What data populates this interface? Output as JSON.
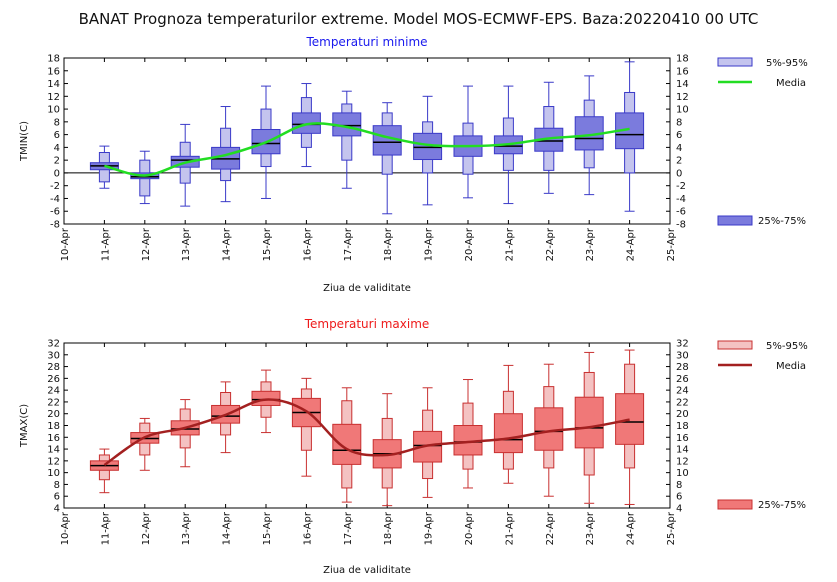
{
  "title": "BANAT  Prognoza temperaturilor extreme.  Model MOS-ECMWF-EPS. Baza:20220410 00 UTC",
  "chart_data": [
    {
      "type": "box",
      "title": "Temperaturi minime",
      "xlabel": "Ziua de validitate",
      "ylabel": "TMIN(C)",
      "ylim": [
        -8,
        18
      ],
      "ytick_step": 2,
      "x_ticks": [
        "10-Apr",
        "11-Apr",
        "12-Apr",
        "13-Apr",
        "14-Apr",
        "15-Apr",
        "16-Apr",
        "17-Apr",
        "18-Apr",
        "19-Apr",
        "20-Apr",
        "21-Apr",
        "22-Apr",
        "23-Apr",
        "24-Apr",
        "25-Apr"
      ],
      "categories": [
        "11-Apr",
        "12-Apr",
        "13-Apr",
        "14-Apr",
        "15-Apr",
        "16-Apr",
        "17-Apr",
        "18-Apr",
        "19-Apr",
        "20-Apr",
        "21-Apr",
        "22-Apr",
        "23-Apr",
        "24-Apr"
      ],
      "whisker_min": [
        -2.4,
        -4.8,
        -5.2,
        -4.5,
        -4.0,
        1.0,
        -2.4,
        -6.4,
        -5.0,
        -3.9,
        -4.8,
        -3.2,
        -3.4,
        -6.0
      ],
      "p5": [
        -1.4,
        -3.6,
        -1.6,
        -1.2,
        1.0,
        4.0,
        2.0,
        -0.2,
        0.0,
        -0.2,
        0.4,
        0.4,
        0.8,
        0.0
      ],
      "p25": [
        0.5,
        -0.9,
        0.9,
        0.6,
        3.0,
        6.2,
        5.8,
        2.8,
        2.1,
        2.6,
        3.0,
        3.4,
        3.6,
        3.8
      ],
      "median": [
        1.1,
        -0.6,
        2.0,
        2.2,
        4.6,
        7.6,
        7.4,
        4.8,
        4.0,
        4.2,
        4.2,
        5.0,
        5.4,
        6.0
      ],
      "p75": [
        1.6,
        0.0,
        2.6,
        4.0,
        6.8,
        9.4,
        9.4,
        7.4,
        6.2,
        5.8,
        5.8,
        7.0,
        8.8,
        9.4
      ],
      "p95": [
        3.2,
        2.0,
        4.8,
        7.0,
        10.0,
        11.8,
        10.8,
        9.4,
        8.0,
        7.8,
        8.6,
        10.4,
        11.4,
        12.6
      ],
      "whisker_max": [
        4.2,
        3.4,
        7.6,
        10.4,
        13.6,
        14.0,
        12.8,
        11.0,
        12.0,
        13.6,
        13.6,
        14.2,
        15.2,
        17.4
      ],
      "mean": [
        1.1,
        -0.4,
        1.6,
        2.8,
        4.8,
        7.6,
        7.2,
        5.6,
        4.4,
        4.2,
        4.5,
        5.4,
        5.9,
        6.9
      ],
      "legend": {
        "p5_95": "5%-95%",
        "mean": "Media",
        "p25_75": "25%-75%"
      },
      "colors": {
        "box_outer": "#c4c4ee",
        "box_inner": "#7b7bdd",
        "stroke": "#3a3ac8",
        "mean_line": "#22dd22",
        "title": "#1a1aee"
      }
    },
    {
      "type": "box",
      "title": "Temperaturi maxime",
      "xlabel": "Ziua de validitate",
      "ylabel": "TMAX(C)",
      "ylim": [
        4,
        32
      ],
      "ytick_step": 2,
      "x_ticks": [
        "10-Apr",
        "11-Apr",
        "12-Apr",
        "13-Apr",
        "14-Apr",
        "15-Apr",
        "16-Apr",
        "17-Apr",
        "18-Apr",
        "19-Apr",
        "20-Apr",
        "21-Apr",
        "22-Apr",
        "23-Apr",
        "24-Apr",
        "25-Apr"
      ],
      "categories": [
        "11-Apr",
        "12-Apr",
        "13-Apr",
        "14-Apr",
        "15-Apr",
        "16-Apr",
        "17-Apr",
        "18-Apr",
        "19-Apr",
        "20-Apr",
        "21-Apr",
        "22-Apr",
        "23-Apr",
        "24-Apr"
      ],
      "whisker_min": [
        6.6,
        10.4,
        11.0,
        13.4,
        16.8,
        9.4,
        5.0,
        4.4,
        5.8,
        7.4,
        8.2,
        6.0,
        4.8,
        4.6
      ],
      "p5": [
        8.8,
        13.0,
        14.2,
        16.4,
        19.4,
        13.8,
        7.4,
        7.4,
        9.0,
        10.6,
        10.6,
        10.8,
        9.6,
        10.8
      ],
      "p25": [
        10.4,
        15.0,
        16.4,
        18.4,
        21.4,
        17.8,
        11.4,
        10.8,
        11.8,
        13.0,
        13.4,
        13.8,
        14.2,
        14.8
      ],
      "median": [
        11.2,
        15.8,
        17.4,
        19.6,
        22.4,
        20.2,
        13.8,
        13.2,
        14.6,
        15.2,
        15.6,
        17.0,
        17.6,
        18.6
      ],
      "p75": [
        12.0,
        16.8,
        18.8,
        21.4,
        23.8,
        22.6,
        18.2,
        15.6,
        17.0,
        18.0,
        20.0,
        21.0,
        22.8,
        23.4
      ],
      "p95": [
        13.0,
        18.4,
        20.8,
        23.6,
        25.4,
        24.2,
        22.2,
        19.2,
        20.6,
        21.8,
        23.8,
        24.6,
        27.0,
        28.4
      ],
      "whisker_max": [
        14.0,
        19.2,
        22.4,
        25.4,
        27.4,
        26.0,
        24.4,
        23.4,
        24.4,
        25.8,
        28.2,
        28.4,
        30.4,
        30.8
      ],
      "mean": [
        11.3,
        16.0,
        17.6,
        19.8,
        22.4,
        20.4,
        14.0,
        13.0,
        14.6,
        15.2,
        15.8,
        17.0,
        17.7,
        19.0
      ],
      "legend": {
        "p5_95": "5%-95%",
        "mean": "Media",
        "p25_75": "25%-75%"
      },
      "colors": {
        "box_outer": "#f4c2c2",
        "box_inner": "#f07878",
        "stroke": "#c83030",
        "mean_line": "#a32020",
        "title": "#ee1a1a"
      }
    }
  ]
}
